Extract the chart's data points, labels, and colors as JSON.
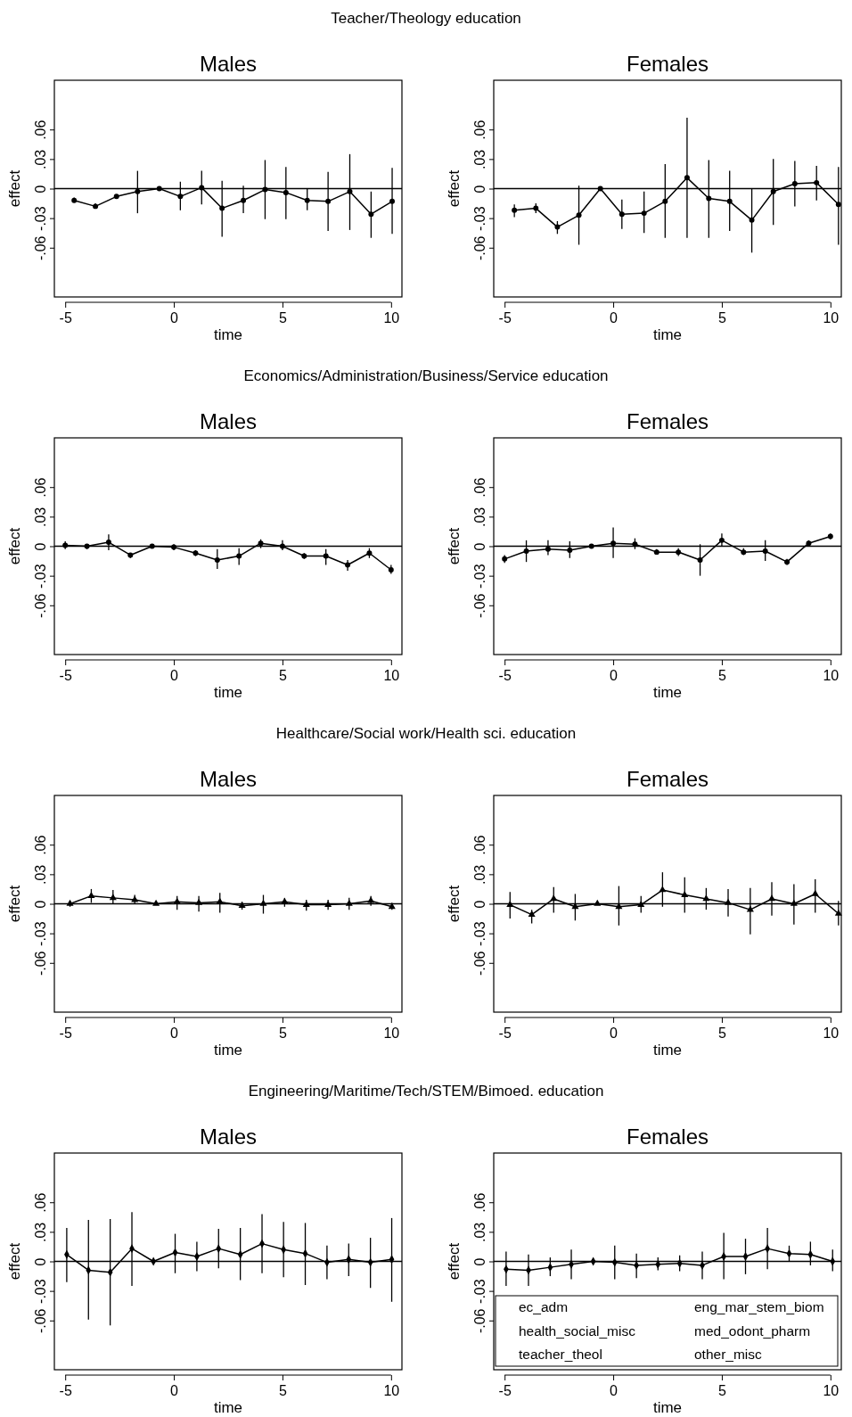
{
  "chart_data": [
    {
      "type": "line",
      "title": "Males",
      "subtitle": "Teacher/Theology education",
      "xlabel": "time",
      "ylabel": "effect",
      "xlim": [
        -5.5,
        10.5
      ],
      "ylim": [
        -0.11,
        0.11
      ],
      "xticks": [
        -5,
        0,
        5,
        10
      ],
      "yticks": [
        {
          "value": -0.06,
          "label": "-.06"
        },
        {
          "value": -0.03,
          "label": "-.03"
        },
        {
          "value": 0,
          "label": "0"
        },
        {
          "value": 0.03,
          "label": ".03"
        },
        {
          "value": 0.06,
          "label": ".06"
        }
      ],
      "marker": "circle",
      "ref_lines": [
        {
          "axis": "y",
          "value": 0
        }
      ],
      "series": [
        {
          "color": "#000000",
          "x": [
            -4.59,
            -3.61,
            -2.64,
            -1.67,
            -0.67,
            0.3,
            1.28,
            2.22,
            3.2,
            4.2,
            5.16,
            6.14,
            7.1,
            8.1,
            9.08,
            10.05
          ],
          "values": [
            -0.012,
            -0.018,
            -0.008,
            -0.003,
            0,
            -0.008,
            0.001,
            -0.02,
            -0.012,
            -0.001,
            -0.004,
            -0.012,
            -0.013,
            -0.003,
            -0.026,
            -0.013
          ],
          "errors": [
            [
              -0.014,
              -0.009
            ],
            [
              -0.02,
              -0.015
            ],
            [
              -0.01,
              -0.007
            ],
            [
              -0.025,
              0.018
            ],
            null,
            [
              -0.022,
              0.007
            ],
            [
              -0.016,
              0.018
            ],
            [
              -0.049,
              0.008
            ],
            [
              -0.025,
              0.003
            ],
            [
              -0.031,
              0.029
            ],
            [
              -0.031,
              0.022
            ],
            [
              -0.022,
              0
            ],
            [
              -0.043,
              0.017
            ],
            [
              -0.042,
              0.035
            ],
            [
              -0.05,
              -0.003
            ],
            [
              -0.046,
              0.021
            ]
          ]
        }
      ]
    },
    {
      "type": "line",
      "title": "Females",
      "xlabel": "time",
      "ylabel": "effect",
      "xlim": [
        -5.5,
        10.5
      ],
      "ylim": [
        -0.11,
        0.11
      ],
      "xticks": [
        -5,
        0,
        5,
        10
      ],
      "yticks": [
        {
          "value": -0.06,
          "label": "-.06"
        },
        {
          "value": -0.03,
          "label": "-.03"
        },
        {
          "value": 0,
          "label": "0"
        },
        {
          "value": 0.03,
          "label": ".03"
        },
        {
          "value": 0.06,
          "label": ".06"
        }
      ],
      "marker": "circle",
      "ref_lines": [
        {
          "axis": "y",
          "value": 0
        }
      ],
      "series": [
        {
          "color": "#000000",
          "x": [
            -4.55,
            -3.56,
            -2.57,
            -1.58,
            -0.59,
            0.4,
            1.42,
            2.39,
            3.4,
            4.4,
            5.36,
            6.38,
            7.37,
            8.36,
            9.36,
            10.37
          ],
          "values": [
            -0.022,
            -0.02,
            -0.039,
            -0.027,
            0,
            -0.026,
            -0.025,
            -0.013,
            0.011,
            -0.01,
            -0.013,
            -0.032,
            -0.003,
            0.005,
            0.006,
            -0.016
          ],
          "errors": [
            [
              -0.029,
              -0.016
            ],
            [
              -0.025,
              -0.015
            ],
            [
              -0.046,
              -0.033
            ],
            [
              -0.057,
              0.003
            ],
            null,
            [
              -0.041,
              -0.011
            ],
            [
              -0.045,
              -0.003
            ],
            [
              -0.05,
              0.025
            ],
            [
              -0.05,
              0.072
            ],
            [
              -0.05,
              0.029
            ],
            [
              -0.043,
              0.018
            ],
            [
              -0.065,
              0
            ],
            [
              -0.037,
              0.03
            ],
            [
              -0.018,
              0.028
            ],
            [
              -0.012,
              0.023
            ],
            [
              -0.057,
              0.022
            ]
          ]
        }
      ]
    },
    {
      "type": "line",
      "title": "Males",
      "subtitle": "Economics/Administration/Business/Service education",
      "xlabel": "time",
      "ylabel": "effect",
      "xlim": [
        -5.5,
        10.5
      ],
      "ylim": [
        -0.11,
        0.11
      ],
      "xticks": [
        -5,
        0,
        5,
        10
      ],
      "yticks": [
        {
          "value": -0.06,
          "label": "-.06"
        },
        {
          "value": -0.03,
          "label": "-.03"
        },
        {
          "value": 0,
          "label": "0"
        },
        {
          "value": 0.03,
          "label": ".03"
        },
        {
          "value": 0.06,
          "label": ".06"
        }
      ],
      "marker": "circle",
      "ref_lines": [
        {
          "axis": "y",
          "value": 0
        }
      ],
      "series": [
        {
          "color": "#000000",
          "x": [
            -5,
            -4,
            -3,
            -2,
            -1,
            0,
            1,
            2,
            3,
            4,
            5,
            6,
            7,
            8,
            9,
            10
          ],
          "values": [
            0.001,
            0,
            0.004,
            -0.009,
            0,
            -0.001,
            -0.007,
            -0.014,
            -0.01,
            0.003,
            0,
            -0.01,
            -0.01,
            -0.019,
            -0.007,
            -0.024
          ],
          "errors": [
            [
              -0.003,
              0.005
            ],
            [
              -0.003,
              0.002
            ],
            [
              -0.004,
              0.012
            ],
            [
              -0.012,
              -0.007
            ],
            null,
            [
              -0.004,
              0.002
            ],
            [
              -0.01,
              -0.004
            ],
            [
              -0.023,
              -0.003
            ],
            [
              -0.019,
              -0.002
            ],
            [
              -0.002,
              0.007
            ],
            [
              -0.004,
              0.006
            ],
            [
              -0.013,
              -0.007
            ],
            [
              -0.019,
              -0.003
            ],
            [
              -0.025,
              -0.014
            ],
            [
              -0.012,
              -0.002
            ],
            [
              -0.028,
              -0.019
            ]
          ]
        }
      ]
    },
    {
      "type": "line",
      "title": "Females",
      "xlabel": "time",
      "ylabel": "effect",
      "xlim": [
        -5.5,
        10.5
      ],
      "ylim": [
        -0.11,
        0.11
      ],
      "xticks": [
        -5,
        0,
        5,
        10
      ],
      "yticks": [
        {
          "value": -0.06,
          "label": "-.06"
        },
        {
          "value": -0.03,
          "label": "-.03"
        },
        {
          "value": 0,
          "label": "0"
        },
        {
          "value": 0.03,
          "label": ".03"
        },
        {
          "value": 0.06,
          "label": ".06"
        }
      ],
      "marker": "circle",
      "ref_lines": [
        {
          "axis": "y",
          "value": 0
        }
      ],
      "series": [
        {
          "color": "#000000",
          "x": [
            -5,
            -4,
            -3,
            -2,
            -1,
            0,
            1,
            2,
            3,
            4,
            5,
            6,
            7,
            8,
            9,
            10
          ],
          "values": [
            -0.013,
            -0.005,
            -0.003,
            -0.004,
            0,
            0.003,
            0.002,
            -0.006,
            -0.006,
            -0.014,
            0.006,
            -0.006,
            -0.005,
            -0.016,
            0.003,
            0.01
          ],
          "errors": [
            [
              -0.017,
              -0.009
            ],
            [
              -0.016,
              0.006
            ],
            [
              -0.009,
              0.006
            ],
            [
              -0.012,
              0.005
            ],
            null,
            [
              -0.012,
              0.019
            ],
            [
              -0.003,
              0.008
            ],
            [
              -0.008,
              -0.003
            ],
            [
              -0.01,
              -0.002
            ],
            [
              -0.03,
              0.002
            ],
            [
              0,
              0.013
            ],
            [
              -0.009,
              -0.002
            ],
            [
              -0.015,
              0.006
            ],
            [
              -0.019,
              -0.013
            ],
            [
              0,
              0.006
            ],
            [
              0.007,
              0.013
            ]
          ]
        }
      ]
    },
    {
      "type": "line",
      "title": "Males",
      "subtitle": "Healthcare/Social work/Health sci. education",
      "xlabel": "time",
      "ylabel": "effect",
      "xlim": [
        -5.5,
        10.5
      ],
      "ylim": [
        -0.11,
        0.11
      ],
      "xticks": [
        -5,
        0,
        5,
        10
      ],
      "yticks": [
        {
          "value": -0.06,
          "label": "-.06"
        },
        {
          "value": -0.03,
          "label": "-.03"
        },
        {
          "value": 0,
          "label": "0"
        },
        {
          "value": 0.03,
          "label": ".03"
        },
        {
          "value": 0.06,
          "label": ".06"
        }
      ],
      "marker": "triangle",
      "ref_lines": [
        {
          "axis": "y",
          "value": 0
        }
      ],
      "series": [
        {
          "color": "#000000",
          "x": [
            -4.78,
            -3.8,
            -2.8,
            -1.8,
            -0.82,
            0.15,
            1.15,
            2.12,
            3.14,
            4.12,
            5.1,
            6.1,
            7.1,
            8.07,
            9.07,
            10.04
          ],
          "values": [
            0,
            0.008,
            0.006,
            0.004,
            0,
            0.002,
            0.001,
            0.002,
            -0.002,
            0,
            0.002,
            -0.001,
            -0.001,
            0,
            0.003,
            -0.003
          ],
          "errors": [
            [
              -0.003,
              0.003
            ],
            [
              0.001,
              0.015
            ],
            [
              0,
              0.014
            ],
            [
              0,
              0.009
            ],
            null,
            [
              -0.006,
              0.008
            ],
            [
              -0.008,
              0.008
            ],
            [
              -0.009,
              0.011
            ],
            [
              -0.006,
              0.002
            ],
            [
              -0.01,
              0.009
            ],
            [
              -0.003,
              0.006
            ],
            [
              -0.007,
              0.004
            ],
            [
              -0.006,
              0.004
            ],
            [
              -0.006,
              0.006
            ],
            [
              -0.002,
              0.008
            ],
            [
              -0.006,
              0.001
            ]
          ]
        }
      ]
    },
    {
      "type": "line",
      "title": "Females",
      "xlabel": "time",
      "ylabel": "effect",
      "xlim": [
        -5.5,
        10.5
      ],
      "ylim": [
        -0.11,
        0.11
      ],
      "xticks": [
        -5,
        0,
        5,
        10
      ],
      "yticks": [
        {
          "value": -0.06,
          "label": "-.06"
        },
        {
          "value": -0.03,
          "label": "-.03"
        },
        {
          "value": 0,
          "label": "0"
        },
        {
          "value": 0.03,
          "label": ".03"
        },
        {
          "value": 0.06,
          "label": ".06"
        }
      ],
      "marker": "triangle",
      "ref_lines": [
        {
          "axis": "y",
          "value": 0
        }
      ],
      "series": [
        {
          "color": "#000000",
          "x": [
            -4.75,
            -3.75,
            -2.74,
            -1.75,
            -0.73,
            0.26,
            1.28,
            2.27,
            3.29,
            4.28,
            5.29,
            6.31,
            7.3,
            8.32,
            9.3,
            10.37
          ],
          "values": [
            -0.001,
            -0.011,
            0.005,
            -0.003,
            0,
            -0.003,
            -0.001,
            0.014,
            0.009,
            0.005,
            0.001,
            -0.006,
            0.005,
            0,
            0.01,
            -0.01
          ],
          "errors": [
            [
              -0.015,
              0.012
            ],
            [
              -0.02,
              -0.006
            ],
            [
              -0.009,
              0.017
            ],
            [
              -0.017,
              0.01
            ],
            null,
            [
              -0.022,
              0.018
            ],
            [
              -0.009,
              0.008
            ],
            [
              -0.003,
              0.032
            ],
            [
              -0.009,
              0.027
            ],
            [
              -0.006,
              0.016
            ],
            [
              -0.013,
              0.015
            ],
            [
              -0.031,
              0.016
            ],
            [
              -0.012,
              0.022
            ],
            [
              -0.021,
              0.02
            ],
            [
              -0.009,
              0.025
            ],
            [
              -0.022,
              0.003
            ]
          ]
        }
      ]
    },
    {
      "type": "line",
      "title": "Males",
      "subtitle": "Engineering/Maritime/Tech/STEM/Bimoed. education",
      "xlabel": "time",
      "ylabel": "effect",
      "xlim": [
        -5.5,
        10.5
      ],
      "ylim": [
        -0.11,
        0.11
      ],
      "xticks": [
        -5,
        0,
        5,
        10
      ],
      "yticks": [
        {
          "value": -0.06,
          "label": "-.06"
        },
        {
          "value": -0.03,
          "label": "-.03"
        },
        {
          "value": 0,
          "label": "0"
        },
        {
          "value": 0.03,
          "label": ".03"
        },
        {
          "value": 0.06,
          "label": ".06"
        }
      ],
      "marker": "diamond",
      "ref_lines": [
        {
          "axis": "y",
          "value": 0
        }
      ],
      "series": [
        {
          "color": "#000000",
          "x": [
            -4.93,
            -3.93,
            -2.93,
            -1.93,
            -0.94,
            0.06,
            1.06,
            2.06,
            3.06,
            4.06,
            5.05,
            6.05,
            7.05,
            8.05,
            9.05,
            10.03
          ],
          "values": [
            0.007,
            -0.009,
            -0.011,
            0.013,
            0,
            0.009,
            0.005,
            0.013,
            0.007,
            0.018,
            0.012,
            0.008,
            -0.001,
            0.002,
            -0.001,
            0.002
          ],
          "errors": [
            [
              -0.021,
              0.034
            ],
            [
              -0.059,
              0.042
            ],
            [
              -0.065,
              0.043
            ],
            [
              -0.025,
              0.05
            ],
            null,
            [
              -0.012,
              0.028
            ],
            [
              -0.01,
              0.02
            ],
            [
              -0.007,
              0.033
            ],
            [
              -0.019,
              0.034
            ],
            [
              -0.012,
              0.048
            ],
            [
              -0.016,
              0.04
            ],
            [
              -0.024,
              0.039
            ],
            [
              -0.018,
              0.016
            ],
            [
              -0.015,
              0.018
            ],
            [
              -0.027,
              0.024
            ],
            [
              -0.041,
              0.044
            ]
          ]
        }
      ]
    },
    {
      "type": "line",
      "title": "Females",
      "xlabel": "time",
      "ylabel": "effect",
      "xlim": [
        -5.5,
        10.5
      ],
      "ylim": [
        -0.11,
        0.11
      ],
      "xticks": [
        -5,
        0,
        5,
        10
      ],
      "yticks": [
        {
          "value": -0.06,
          "label": "-.06"
        },
        {
          "value": -0.03,
          "label": "-.03"
        },
        {
          "value": 0,
          "label": "0"
        },
        {
          "value": 0.03,
          "label": ".03"
        },
        {
          "value": 0.06,
          "label": ".06"
        }
      ],
      "marker": "diamond",
      "ref_lines": [
        {
          "axis": "y",
          "value": 0
        }
      ],
      "annotations": [
        "ec_adm",
        "eng_mar_stem_biom",
        "health_social_misc",
        "med_odont_pharm",
        "teacher_theol",
        "other_misc"
      ],
      "series": [
        {
          "color": "#000000",
          "x": [
            -4.93,
            -3.9,
            -2.9,
            -1.93,
            -0.92,
            0.07,
            1.07,
            2.06,
            3.06,
            4.1,
            5.09,
            6.09,
            7.1,
            8.1,
            9.08,
            10.1
          ],
          "values": [
            -0.008,
            -0.009,
            -0.006,
            -0.003,
            0,
            -0.001,
            -0.004,
            -0.003,
            -0.002,
            -0.004,
            0.005,
            0.005,
            0.013,
            0.008,
            0.007,
            0
          ],
          "errors": [
            [
              -0.025,
              0.01
            ],
            [
              -0.025,
              0.007
            ],
            [
              -0.015,
              0.004
            ],
            [
              -0.018,
              0.012
            ],
            [
              -0.002,
              0.002
            ],
            [
              -0.018,
              0.016
            ],
            [
              -0.017,
              0.008
            ],
            [
              -0.009,
              0.004
            ],
            [
              -0.01,
              0.006
            ],
            [
              -0.018,
              0.01
            ],
            [
              -0.018,
              0.029
            ],
            [
              -0.013,
              0.023
            ],
            [
              -0.008,
              0.034
            ],
            [
              0,
              0.016
            ],
            [
              -0.004,
              0.02
            ],
            [
              -0.01,
              0.012
            ]
          ]
        }
      ]
    }
  ]
}
